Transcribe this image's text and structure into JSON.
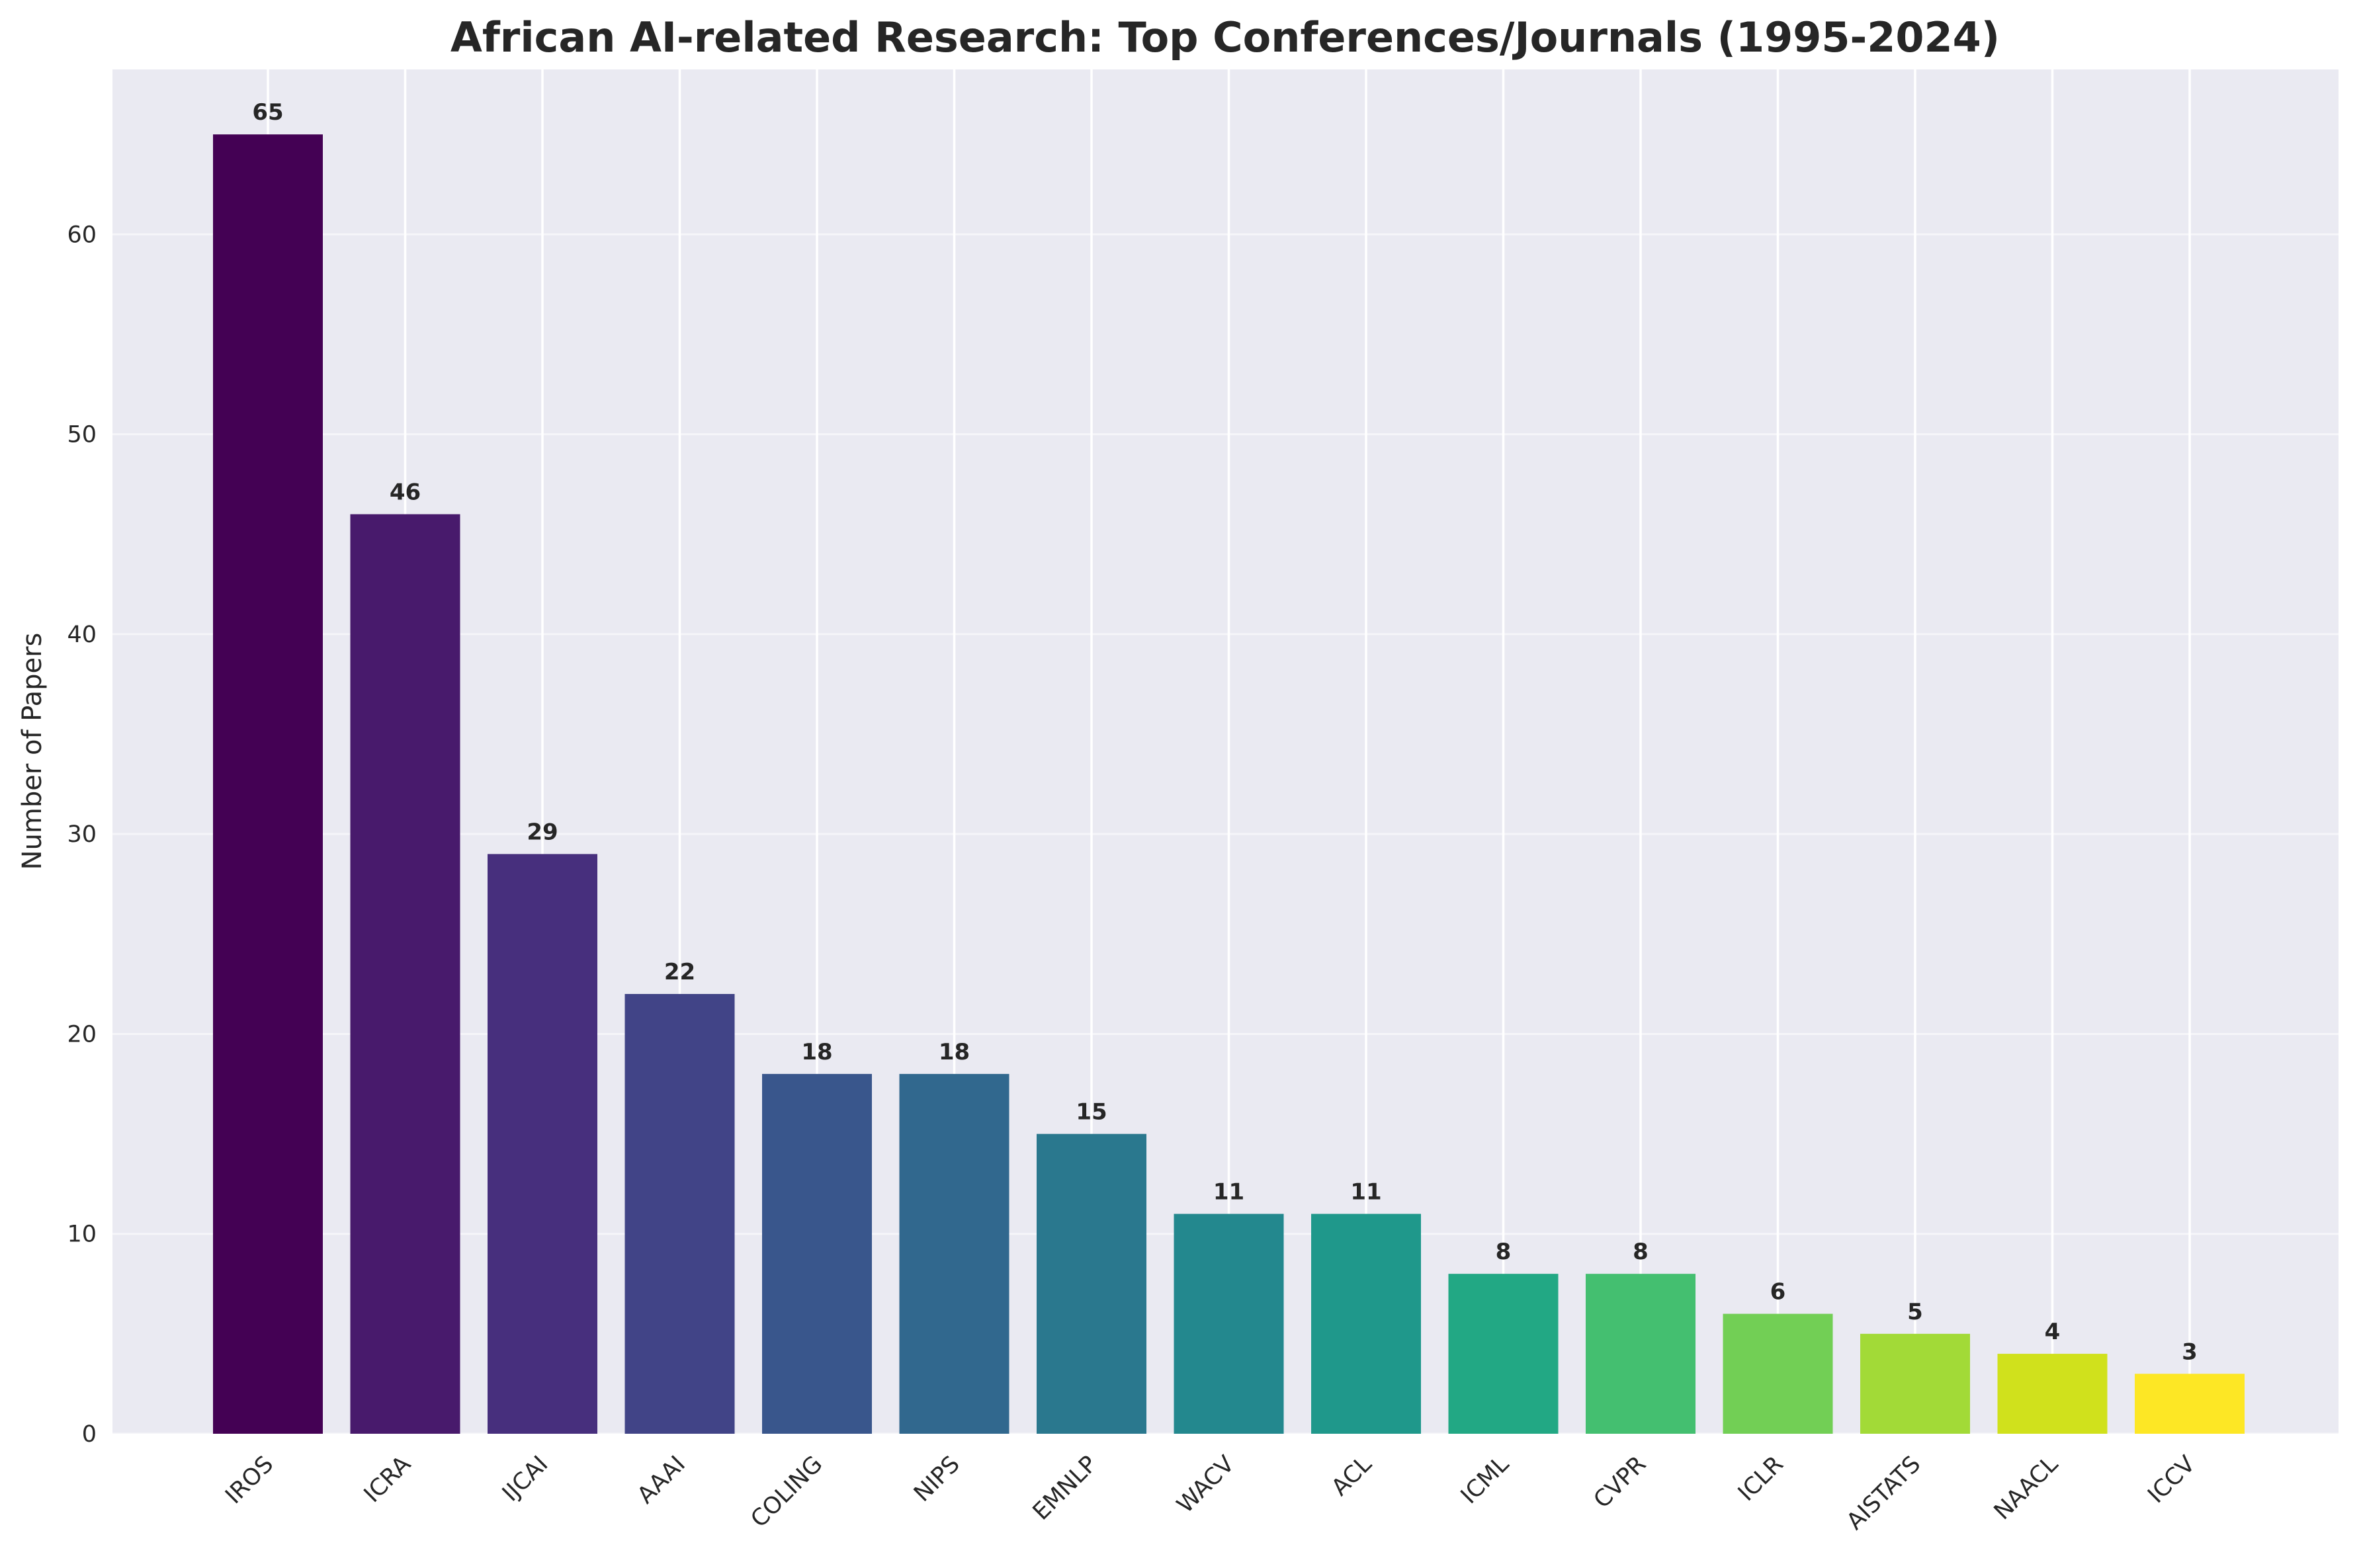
{
  "chart_data": {
    "type": "bar",
    "title": "African AI-related Research: Top Conferences/Journals (1995-2024)",
    "xlabel": "",
    "ylabel": "Number of Papers",
    "ylim": [
      0,
      68.25
    ],
    "yticks": [
      0,
      10,
      20,
      30,
      40,
      50,
      60
    ],
    "grid": true,
    "categories": [
      "IROS",
      "ICRA",
      "IJCAI",
      "AAAI",
      "COLING",
      "NIPS",
      "EMNLP",
      "WACV",
      "ACL",
      "ICML",
      "CVPR",
      "ICLR",
      "AISTATS",
      "NAACL",
      "ICCV"
    ],
    "values": [
      65,
      46,
      29,
      22,
      18,
      18,
      15,
      11,
      11,
      8,
      8,
      6,
      5,
      4,
      3
    ],
    "colors": [
      "#440154",
      "#481a6c",
      "#472f7d",
      "#414487",
      "#39568c",
      "#31688e",
      "#2a788e",
      "#23888e",
      "#1f988b",
      "#22a884",
      "#35b779",
      "#54c568",
      "#7ad151",
      "#a5db36",
      "#d2e21b",
      "#fde725"
    ],
    "bar_colors": [
      "#440154",
      "#481a6c",
      "#472f7d",
      "#414487",
      "#39568c",
      "#31688e",
      "#2a788e",
      "#23888e",
      "#1f988b",
      "#22a884",
      "#44bf70",
      "#72cf55",
      "#a2da37",
      "#d0e11c",
      "#fde725"
    ],
    "background": "#eaeaf2",
    "grid_color": "#ffffff"
  }
}
